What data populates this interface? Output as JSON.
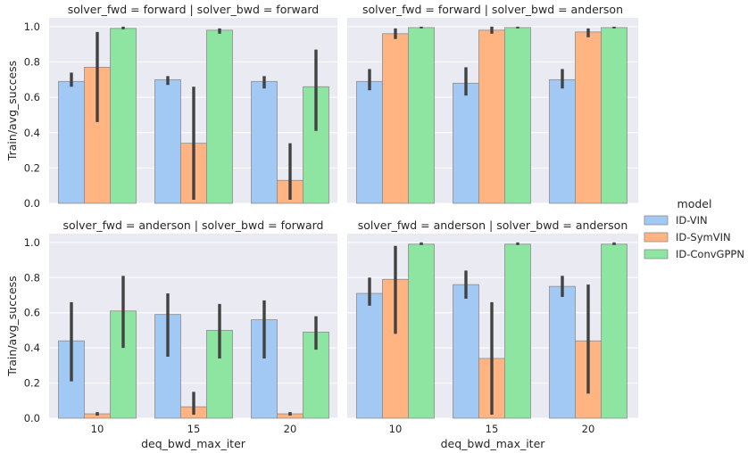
{
  "chart_data": {
    "type": "bar",
    "xlabel": "deq_bwd_max_iter",
    "ylabel": "Train/avg_success",
    "ylim": [
      0,
      1.05
    ],
    "yticks": [
      "0.0",
      "0.2",
      "0.4",
      "0.6",
      "0.8",
      "1.0"
    ],
    "categories": [
      "10",
      "15",
      "20"
    ],
    "grid": true,
    "legend": {
      "title": "model",
      "position": "right",
      "entries": [
        "ID-VIN",
        "ID-SymVIN",
        "ID-ConvGPPN"
      ]
    },
    "colors": {
      "ID-VIN": "#a1c9f4",
      "ID-SymVIN": "#ffb482",
      "ID-ConvGPPN": "#8de5a1",
      "background": "#eaeaf2",
      "errorbar": "#424242"
    },
    "panels": [
      {
        "title": "solver_fwd = forward | solver_bwd = forward",
        "series": [
          {
            "name": "ID-VIN",
            "values": [
              0.69,
              0.7,
              0.69
            ],
            "ci_low": [
              0.66,
              0.67,
              0.65
            ],
            "ci_high": [
              0.74,
              0.72,
              0.72
            ]
          },
          {
            "name": "ID-SymVIN",
            "values": [
              0.77,
              0.34,
              0.13
            ],
            "ci_low": [
              0.46,
              0.02,
              0.02
            ],
            "ci_high": [
              0.97,
              0.66,
              0.34
            ]
          },
          {
            "name": "ID-ConvGPPN",
            "values": [
              0.99,
              0.98,
              0.66
            ],
            "ci_low": [
              0.985,
              0.96,
              0.41
            ],
            "ci_high": [
              1.0,
              0.99,
              0.87
            ]
          }
        ]
      },
      {
        "title": "solver_fwd = forward | solver_bwd = anderson",
        "series": [
          {
            "name": "ID-VIN",
            "values": [
              0.69,
              0.68,
              0.7
            ],
            "ci_low": [
              0.64,
              0.61,
              0.65
            ],
            "ci_high": [
              0.76,
              0.77,
              0.76
            ]
          },
          {
            "name": "ID-SymVIN",
            "values": [
              0.96,
              0.98,
              0.97
            ],
            "ci_low": [
              0.93,
              0.96,
              0.94
            ],
            "ci_high": [
              0.99,
              1.0,
              0.99
            ]
          },
          {
            "name": "ID-ConvGPPN",
            "values": [
              0.995,
              0.995,
              0.995
            ],
            "ci_low": [
              0.99,
              0.99,
              0.99
            ],
            "ci_high": [
              1.0,
              1.0,
              1.0
            ]
          }
        ]
      },
      {
        "title": "solver_fwd = anderson | solver_bwd = forward",
        "series": [
          {
            "name": "ID-VIN",
            "values": [
              0.44,
              0.59,
              0.56
            ],
            "ci_low": [
              0.21,
              0.35,
              0.34
            ],
            "ci_high": [
              0.66,
              0.71,
              0.67
            ]
          },
          {
            "name": "ID-SymVIN",
            "values": [
              0.025,
              0.065,
              0.025
            ],
            "ci_low": [
              0.015,
              0.02,
              0.015
            ],
            "ci_high": [
              0.035,
              0.15,
              0.035
            ]
          },
          {
            "name": "ID-ConvGPPN",
            "values": [
              0.61,
              0.5,
              0.49
            ],
            "ci_low": [
              0.4,
              0.34,
              0.39
            ],
            "ci_high": [
              0.81,
              0.65,
              0.58
            ]
          }
        ]
      },
      {
        "title": "solver_fwd = anderson | solver_bwd = anderson",
        "series": [
          {
            "name": "ID-VIN",
            "values": [
              0.71,
              0.76,
              0.75
            ],
            "ci_low": [
              0.64,
              0.68,
              0.69
            ],
            "ci_high": [
              0.8,
              0.84,
              0.81
            ]
          },
          {
            "name": "ID-SymVIN",
            "values": [
              0.79,
              0.34,
              0.44
            ],
            "ci_low": [
              0.48,
              0.02,
              0.14
            ],
            "ci_high": [
              0.98,
              0.66,
              0.76
            ]
          },
          {
            "name": "ID-ConvGPPN",
            "values": [
              0.99,
              0.99,
              0.99
            ],
            "ci_low": [
              0.985,
              0.985,
              0.985
            ],
            "ci_high": [
              1.0,
              1.0,
              1.0
            ]
          }
        ]
      }
    ]
  }
}
